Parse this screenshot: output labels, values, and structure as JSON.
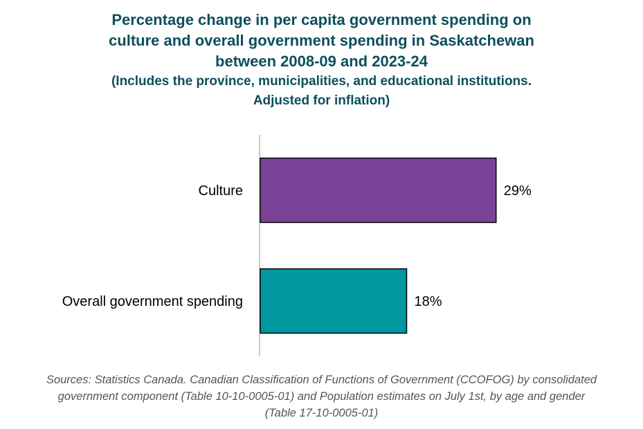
{
  "title": {
    "lines": [
      "Percentage change in per capita government spending on",
      "culture and overall government spending in Saskatchewan",
      "between 2008-09 and 2023-24"
    ],
    "subtitle_lines": [
      "(Includes the province, municipalities, and educational institutions.",
      "Adjusted for inflation)"
    ]
  },
  "chart_data": {
    "type": "bar",
    "orientation": "horizontal",
    "title": "Percentage change in per capita government spending on culture and overall government spending in Saskatchewan between 2008-09 and 2023-24",
    "categories": [
      "Culture",
      "Overall government spending"
    ],
    "values": [
      29,
      18
    ],
    "value_labels": [
      "29%",
      "18%"
    ],
    "colors": [
      "#7b4397",
      "#0097a0"
    ],
    "xlim": [
      0,
      40
    ],
    "xlabel": "",
    "ylabel": "",
    "grid": false
  },
  "source": {
    "lines": [
      "Sources: Statistics Canada. Canadian Classification of Functions of Government (CCOFOG) by consolidated",
      "government component (Table 10-10-0005-01) and Population estimates on July 1st, by age and gender",
      "(Table 17-10-0005-01)"
    ]
  }
}
